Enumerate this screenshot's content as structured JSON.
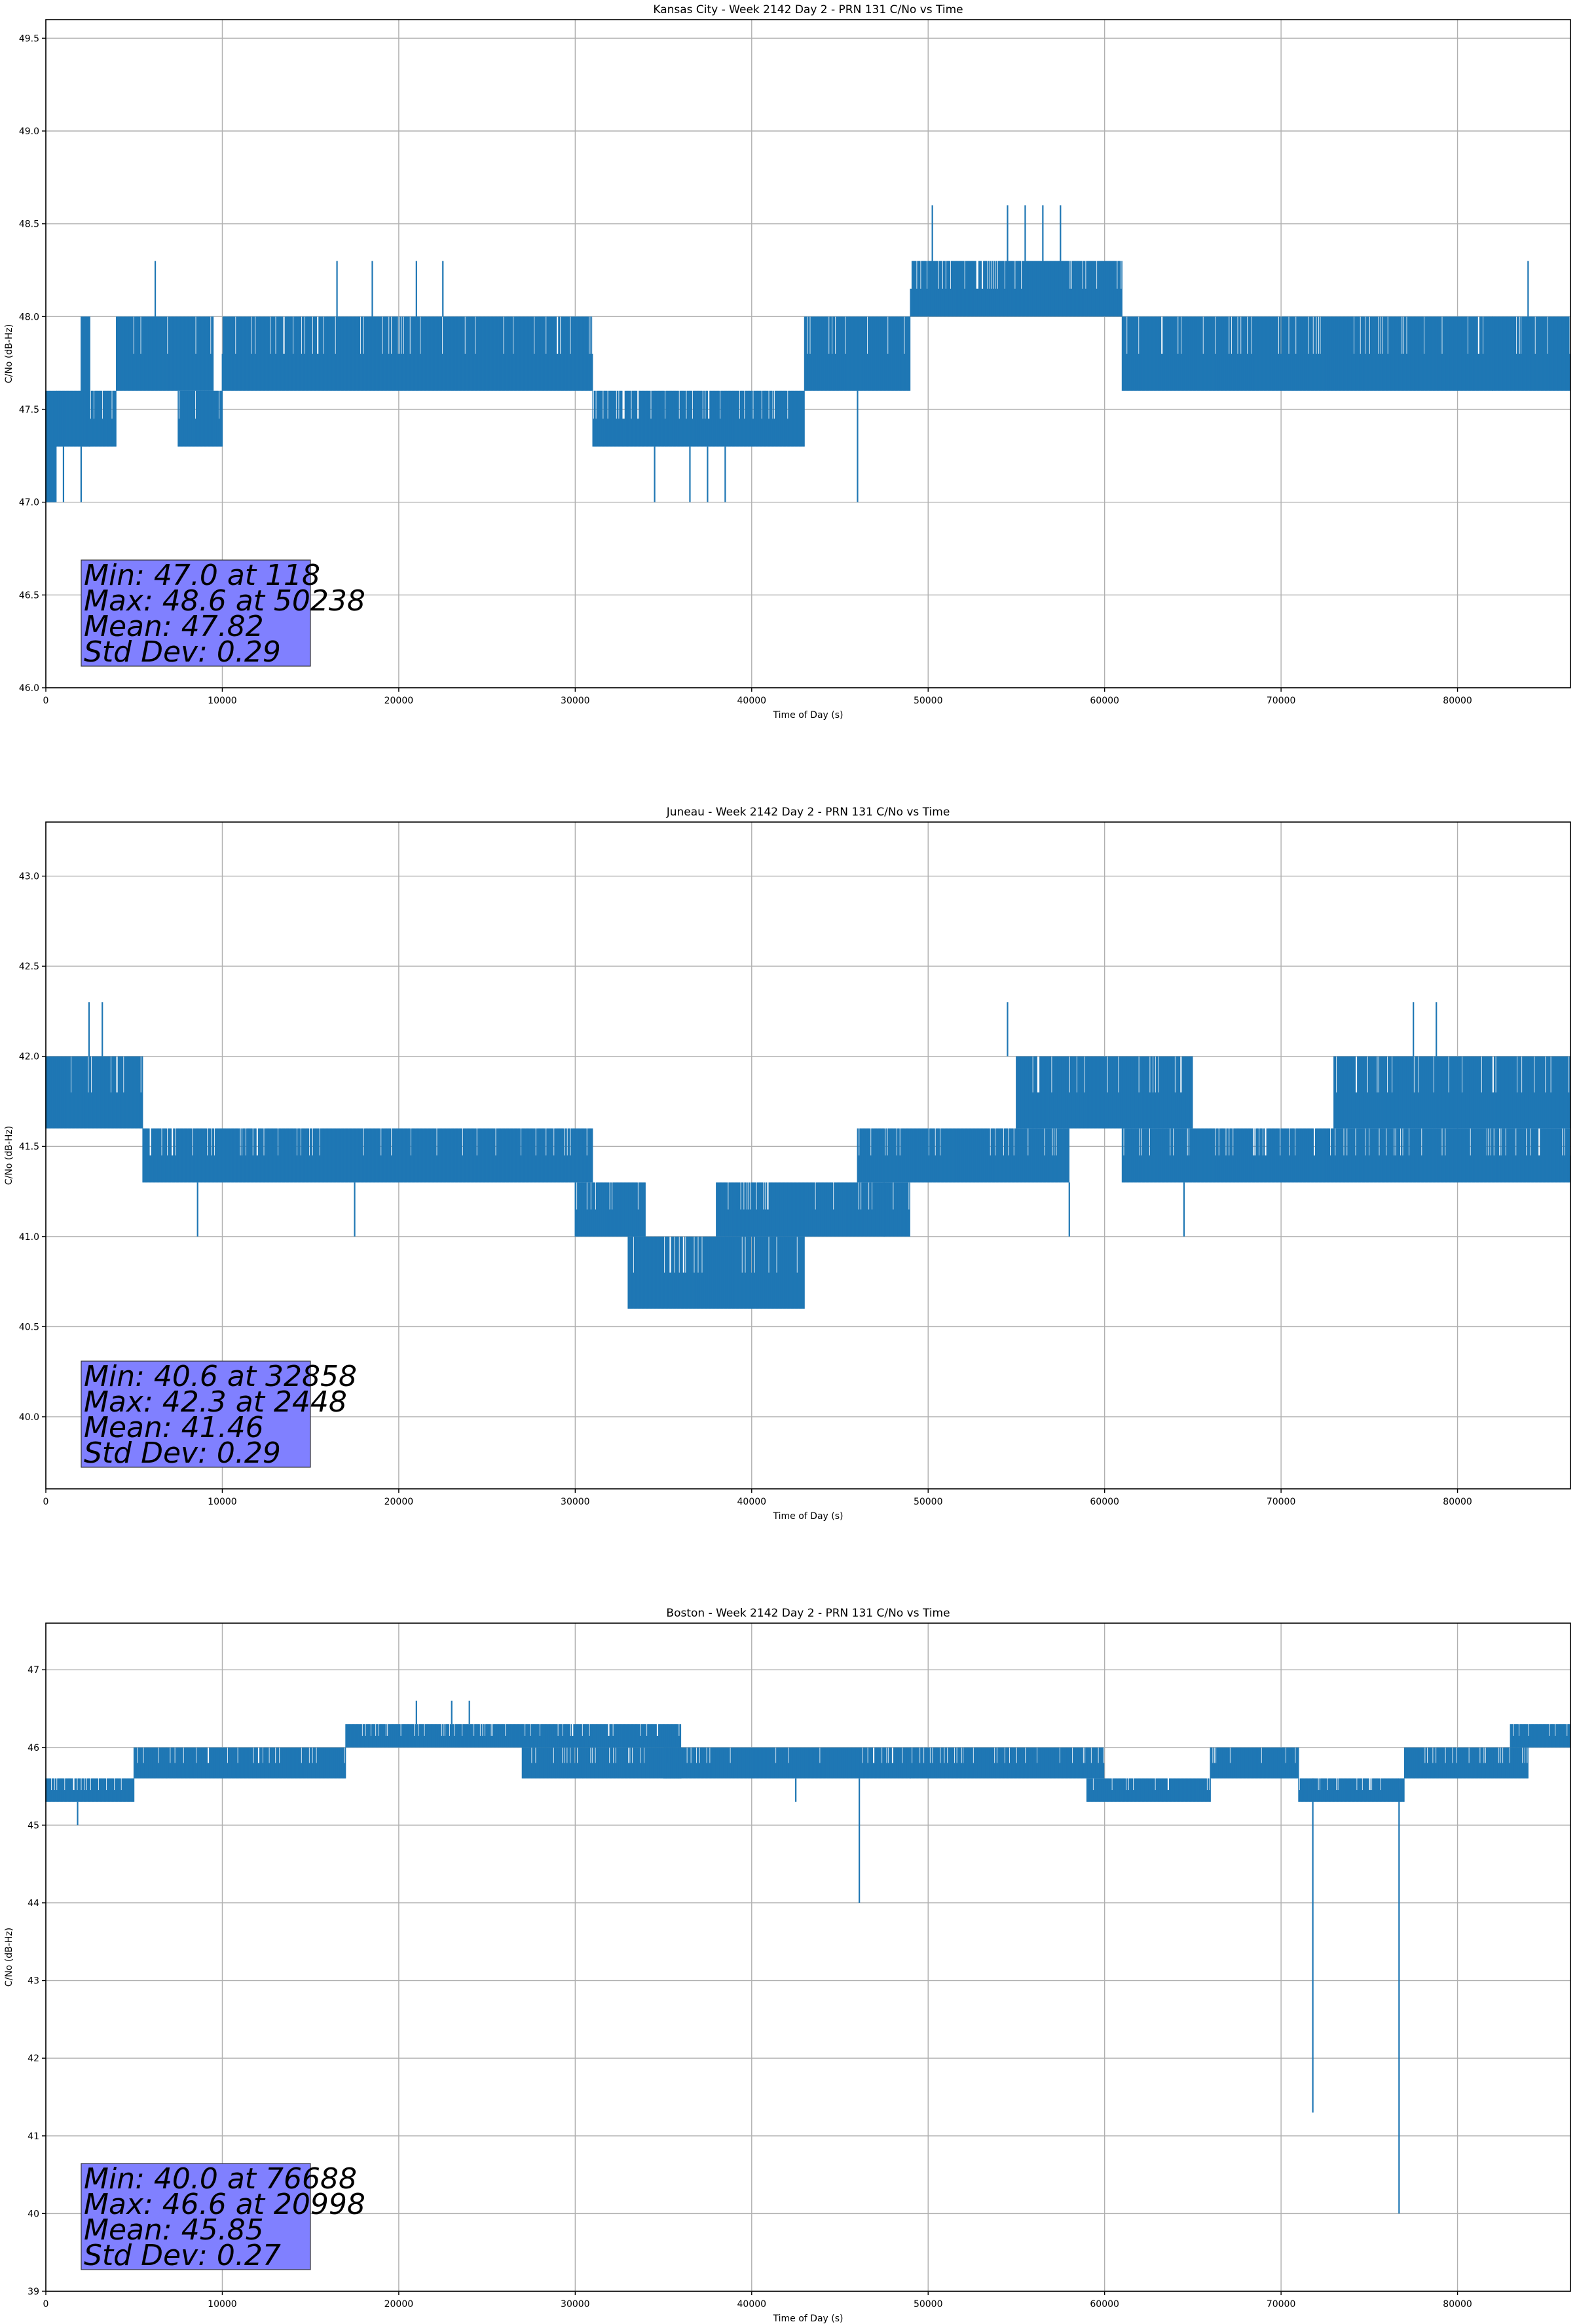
{
  "chart_data": [
    {
      "type": "line",
      "title": "Kansas City - Week 2142 Day 2 - PRN 131 C/No vs Time",
      "xlabel": "Time of Day (s)",
      "ylabel": "C/No (dB-Hz)",
      "xlim": [
        0,
        86400
      ],
      "ylim": [
        46.0,
        49.6
      ],
      "xticks": [
        0,
        10000,
        20000,
        30000,
        40000,
        50000,
        60000,
        70000,
        80000
      ],
      "yticks": [
        "46.0",
        "46.5",
        "47.0",
        "47.5",
        "48.0",
        "48.5",
        "49.0",
        "49.5"
      ],
      "grid": true,
      "color": "#1f77b4",
      "stats": {
        "min_label": "Min: 47.0 at 118",
        "max_label": "Max: 48.6 at 50238",
        "mean_label": "Mean: 47.82",
        "std_label": "Std Dev: 0.29"
      },
      "bands": [
        {
          "x": [
            0,
            600
          ],
          "y": [
            47.0,
            47.6
          ]
        },
        {
          "x": [
            600,
            2000
          ],
          "y": [
            47.3,
            47.6
          ]
        },
        {
          "x": [
            2000,
            2500
          ],
          "y": [
            47.3,
            48.0
          ]
        },
        {
          "x": [
            2500,
            4000
          ],
          "y": [
            47.3,
            47.6
          ]
        },
        {
          "x": [
            4000,
            9500
          ],
          "y": [
            47.6,
            48.0
          ]
        },
        {
          "x": [
            7500,
            10000
          ],
          "y": [
            47.3,
            47.6
          ]
        },
        {
          "x": [
            10000,
            31000
          ],
          "y": [
            47.6,
            48.0
          ]
        },
        {
          "x": [
            31000,
            33000
          ],
          "y": [
            47.3,
            47.6
          ]
        },
        {
          "x": [
            33000,
            43000
          ],
          "y": [
            47.3,
            47.6
          ]
        },
        {
          "x": [
            43000,
            49000
          ],
          "y": [
            47.6,
            48.0
          ]
        },
        {
          "x": [
            49000,
            61000
          ],
          "y": [
            48.0,
            48.3
          ]
        },
        {
          "x": [
            61000,
            82000
          ],
          "y": [
            47.6,
            48.0
          ]
        },
        {
          "x": [
            82000,
            86400
          ],
          "y": [
            47.6,
            48.0
          ]
        }
      ],
      "spikes": [
        {
          "x": 1000,
          "y": [
            47.0,
            47.3
          ]
        },
        {
          "x": 2000,
          "y": [
            47.0,
            47.3
          ]
        },
        {
          "x": 6200,
          "y": [
            48.0,
            48.3
          ]
        },
        {
          "x": 16500,
          "y": [
            48.0,
            48.3
          ]
        },
        {
          "x": 18500,
          "y": [
            48.0,
            48.3
          ]
        },
        {
          "x": 21000,
          "y": [
            48.0,
            48.3
          ]
        },
        {
          "x": 22500,
          "y": [
            48.0,
            48.3
          ]
        },
        {
          "x": 34500,
          "y": [
            47.0,
            47.3
          ]
        },
        {
          "x": 36500,
          "y": [
            47.0,
            47.3
          ]
        },
        {
          "x": 37500,
          "y": [
            47.0,
            47.3
          ]
        },
        {
          "x": 38500,
          "y": [
            47.0,
            47.3
          ]
        },
        {
          "x": 46000,
          "y": [
            47.0,
            47.6
          ]
        },
        {
          "x": 50238,
          "y": [
            48.3,
            48.6
          ]
        },
        {
          "x": 54500,
          "y": [
            48.3,
            48.6
          ]
        },
        {
          "x": 55500,
          "y": [
            48.3,
            48.6
          ]
        },
        {
          "x": 56500,
          "y": [
            48.3,
            48.6
          ]
        },
        {
          "x": 57500,
          "y": [
            48.3,
            48.6
          ]
        },
        {
          "x": 84000,
          "y": [
            48.0,
            48.3
          ]
        }
      ]
    },
    {
      "type": "line",
      "title": "Juneau - Week 2142 Day 2 - PRN 131 C/No vs Time",
      "xlabel": "Time of Day (s)",
      "ylabel": "C/No (dB-Hz)",
      "xlim": [
        0,
        86400
      ],
      "ylim": [
        39.6,
        43.3
      ],
      "xticks": [
        0,
        10000,
        20000,
        30000,
        40000,
        50000,
        60000,
        70000,
        80000
      ],
      "yticks": [
        "40.0",
        "40.5",
        "41.0",
        "41.5",
        "42.0",
        "42.5",
        "43.0"
      ],
      "grid": true,
      "color": "#1f77b4",
      "stats": {
        "min_label": "Min: 40.6 at 32858",
        "max_label": "Max: 42.3 at 2448",
        "mean_label": "Mean: 41.46",
        "std_label": "Std Dev: 0.29"
      },
      "bands": [
        {
          "x": [
            0,
            5500
          ],
          "y": [
            41.6,
            42.0
          ]
        },
        {
          "x": [
            5500,
            31000
          ],
          "y": [
            41.3,
            41.6
          ]
        },
        {
          "x": [
            30000,
            34000
          ],
          "y": [
            41.0,
            41.3
          ]
        },
        {
          "x": [
            33000,
            43000
          ],
          "y": [
            40.6,
            41.0
          ]
        },
        {
          "x": [
            38000,
            49000
          ],
          "y": [
            41.0,
            41.3
          ]
        },
        {
          "x": [
            46000,
            58000
          ],
          "y": [
            41.3,
            41.6
          ]
        },
        {
          "x": [
            55000,
            65000
          ],
          "y": [
            41.6,
            42.0
          ]
        },
        {
          "x": [
            61000,
            86400
          ],
          "y": [
            41.3,
            41.6
          ]
        },
        {
          "x": [
            73000,
            86400
          ],
          "y": [
            41.6,
            42.0
          ]
        }
      ],
      "spikes": [
        {
          "x": 2448,
          "y": [
            42.0,
            42.3
          ]
        },
        {
          "x": 3200,
          "y": [
            42.0,
            42.3
          ]
        },
        {
          "x": 8600,
          "y": [
            41.0,
            41.3
          ]
        },
        {
          "x": 17500,
          "y": [
            41.0,
            41.3
          ]
        },
        {
          "x": 47500,
          "y": [
            41.0,
            41.3
          ]
        },
        {
          "x": 54500,
          "y": [
            42.0,
            42.3
          ]
        },
        {
          "x": 58000,
          "y": [
            41.0,
            41.3
          ]
        },
        {
          "x": 64500,
          "y": [
            41.0,
            41.3
          ]
        },
        {
          "x": 77500,
          "y": [
            42.0,
            42.3
          ]
        },
        {
          "x": 78800,
          "y": [
            42.0,
            42.3
          ]
        }
      ]
    },
    {
      "type": "line",
      "title": "Boston - Week 2142 Day 2 - PRN 131 C/No vs Time",
      "xlabel": "Time of Day (s)",
      "ylabel": "C/No (dB-Hz)",
      "xlim": [
        0,
        86400
      ],
      "ylim": [
        39,
        47.6
      ],
      "xticks": [
        0,
        10000,
        20000,
        30000,
        40000,
        50000,
        60000,
        70000,
        80000
      ],
      "yticks": [
        "39",
        "40",
        "41",
        "42",
        "43",
        "44",
        "45",
        "46",
        "47"
      ],
      "grid": true,
      "color": "#1f77b4",
      "stats": {
        "min_label": "Min: 40.0 at 76688",
        "max_label": "Max: 46.6 at 20998",
        "mean_label": "Mean: 45.85",
        "std_label": "Std Dev: 0.27"
      },
      "bands": [
        {
          "x": [
            0,
            5000
          ],
          "y": [
            45.3,
            45.6
          ]
        },
        {
          "x": [
            5000,
            17000
          ],
          "y": [
            45.6,
            46.0
          ]
        },
        {
          "x": [
            17000,
            36000
          ],
          "y": [
            46.0,
            46.3
          ]
        },
        {
          "x": [
            27000,
            36000
          ],
          "y": [
            45.6,
            46.0
          ]
        },
        {
          "x": [
            35000,
            49000
          ],
          "y": [
            45.6,
            46.0
          ]
        },
        {
          "x": [
            49000,
            60000
          ],
          "y": [
            45.6,
            46.0
          ]
        },
        {
          "x": [
            59000,
            66000
          ],
          "y": [
            45.3,
            45.6
          ]
        },
        {
          "x": [
            66000,
            71000
          ],
          "y": [
            45.6,
            46.0
          ]
        },
        {
          "x": [
            71000,
            77000
          ],
          "y": [
            45.3,
            45.6
          ]
        },
        {
          "x": [
            77000,
            84000
          ],
          "y": [
            45.6,
            46.0
          ]
        },
        {
          "x": [
            83000,
            86400
          ],
          "y": [
            46.0,
            46.3
          ]
        }
      ],
      "spikes": [
        {
          "x": 1800,
          "y": [
            45.0,
            45.3
          ]
        },
        {
          "x": 21000,
          "y": [
            46.3,
            46.6
          ]
        },
        {
          "x": 23000,
          "y": [
            46.3,
            46.6
          ]
        },
        {
          "x": 24000,
          "y": [
            46.3,
            46.6
          ]
        },
        {
          "x": 42500,
          "y": [
            45.3,
            45.6
          ]
        },
        {
          "x": 46100,
          "y": [
            44.0,
            45.6
          ]
        },
        {
          "x": 71800,
          "y": [
            41.3,
            45.6
          ]
        },
        {
          "x": 76688,
          "y": [
            40.0,
            45.6
          ]
        }
      ]
    }
  ]
}
